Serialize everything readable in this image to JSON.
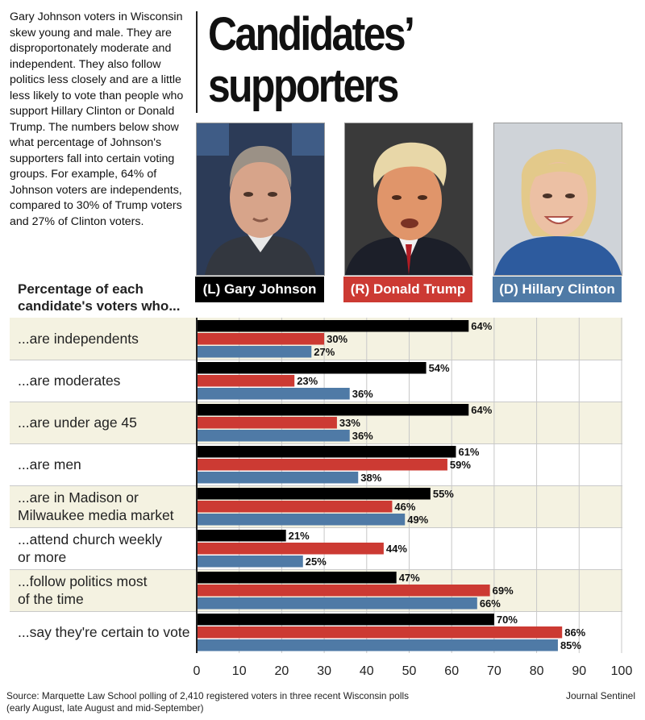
{
  "intro_text": "Gary Johnson voters in Wisconsin skew young and male. They are disproportonately moderate and independent. They also follow politics less closely and are a little less likely to vote than people who support Hillary Clinton or Donald Trump. The numbers below show what percentage of Johnson's supporters fall into certain voting groups.  For example, 64% of Johnson voters are independents,  compared to 30% of Trump voters and 27% of Clinton voters.",
  "title_line1": "Candidates’",
  "title_line2": "supporters",
  "candidates": [
    {
      "label": "(L) Gary Johnson",
      "color": "#000000",
      "photo": "portrait-gary-johnson"
    },
    {
      "label": "(R) Donald Trump",
      "color": "#cc3a33",
      "photo": "portrait-donald-trump"
    },
    {
      "label": "(D) Hillary Clinton",
      "color": "#4f7aa6",
      "photo": "portrait-hillary-clinton"
    }
  ],
  "subhead": "Percentage of each candidate's voters who...",
  "chart_data": {
    "type": "bar",
    "orientation": "horizontal",
    "categories": [
      "...are independents",
      "...are moderates",
      "...are under age 45",
      "...are men",
      "...are in Madison or Milwaukee media market",
      "...attend church weekly or more",
      "...follow politics most of the time",
      "...say they're certain to vote"
    ],
    "category_lines": [
      [
        "...are independents"
      ],
      [
        "...are moderates"
      ],
      [
        "...are under age 45"
      ],
      [
        "...are men"
      ],
      [
        "...are in Madison or",
        "Milwaukee media market"
      ],
      [
        "...attend church weekly",
        "or more"
      ],
      [
        "...follow politics most",
        "of the time"
      ],
      [
        "...say they're certain to vote"
      ]
    ],
    "series": [
      {
        "name": "(L) Gary Johnson",
        "color": "#000000",
        "values": [
          64,
          54,
          64,
          61,
          55,
          21,
          47,
          70
        ]
      },
      {
        "name": "(R) Donald Trump",
        "color": "#cc3a33",
        "values": [
          30,
          23,
          33,
          59,
          46,
          44,
          69,
          86
        ]
      },
      {
        "name": "(D) Hillary Clinton",
        "color": "#4f7aa6",
        "values": [
          27,
          36,
          36,
          38,
          49,
          25,
          66,
          85
        ]
      }
    ],
    "value_suffix": "%",
    "xlim": [
      0,
      100
    ],
    "xticks": [
      0,
      10,
      20,
      30,
      40,
      50,
      60,
      70,
      80,
      90,
      100
    ],
    "title": "Candidates’ supporters",
    "xlabel": "",
    "ylabel": "",
    "grid": true
  },
  "row_bg_colors": [
    "#f4f2e1",
    "#ffffff"
  ],
  "source_line1": "Source: Marquette Law School polling of 2,410 registered voters in three recent Wisconsin polls",
  "source_line2": "(early August, late August and mid-September)",
  "brand": "Journal Sentinel"
}
